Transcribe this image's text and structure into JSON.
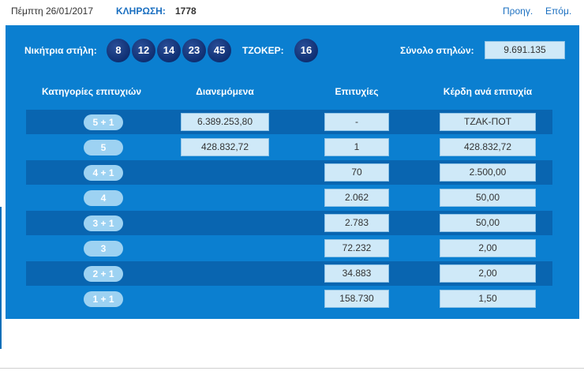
{
  "header": {
    "date": "Πέμπτη 26/01/2017",
    "draw_label": "ΚΛΗΡΩΣΗ:",
    "draw_number": "1778",
    "prev_label": "Προηγ.",
    "next_label": "Επόμ."
  },
  "winning": {
    "label": "Νικήτρια στήλη:",
    "numbers": [
      "8",
      "12",
      "14",
      "23",
      "45"
    ],
    "joker_label": "ΤΖΟΚΕΡ:",
    "joker": "16",
    "total_label": "Σύνολο στηλών:",
    "total_value": "9.691.135"
  },
  "columns": {
    "category": "Κατηγορίες επιτυχιών",
    "distributed": "Διανεμόμενα",
    "winners": "Επιτυχίες",
    "prize": "Κέρδη ανά επιτυχία"
  },
  "rows": [
    {
      "category": "5 + 1",
      "distributed": "6.389.253,80",
      "winners": "-",
      "prize": "ΤΖΑΚ-ΠΟΤ"
    },
    {
      "category": "5",
      "distributed": "428.832,72",
      "winners": "1",
      "prize": "428.832,72"
    },
    {
      "category": "4 + 1",
      "distributed": "",
      "winners": "70",
      "prize": "2.500,00"
    },
    {
      "category": "4",
      "distributed": "",
      "winners": "2.062",
      "prize": "50,00"
    },
    {
      "category": "3 + 1",
      "distributed": "",
      "winners": "2.783",
      "prize": "50,00"
    },
    {
      "category": "3",
      "distributed": "",
      "winners": "72.232",
      "prize": "2,00"
    },
    {
      "category": "2 + 1",
      "distributed": "",
      "winners": "34.883",
      "prize": "2,00"
    },
    {
      "category": "1 + 1",
      "distributed": "",
      "winners": "158.730",
      "prize": "1,50"
    }
  ],
  "colors": {
    "panel": "#0b7fd0",
    "row_dark": "#0965b0",
    "ball": "#0f2f72",
    "pill": "#9dd2f2",
    "value_box": "#cfe9f8",
    "link": "#1a6fc0"
  }
}
